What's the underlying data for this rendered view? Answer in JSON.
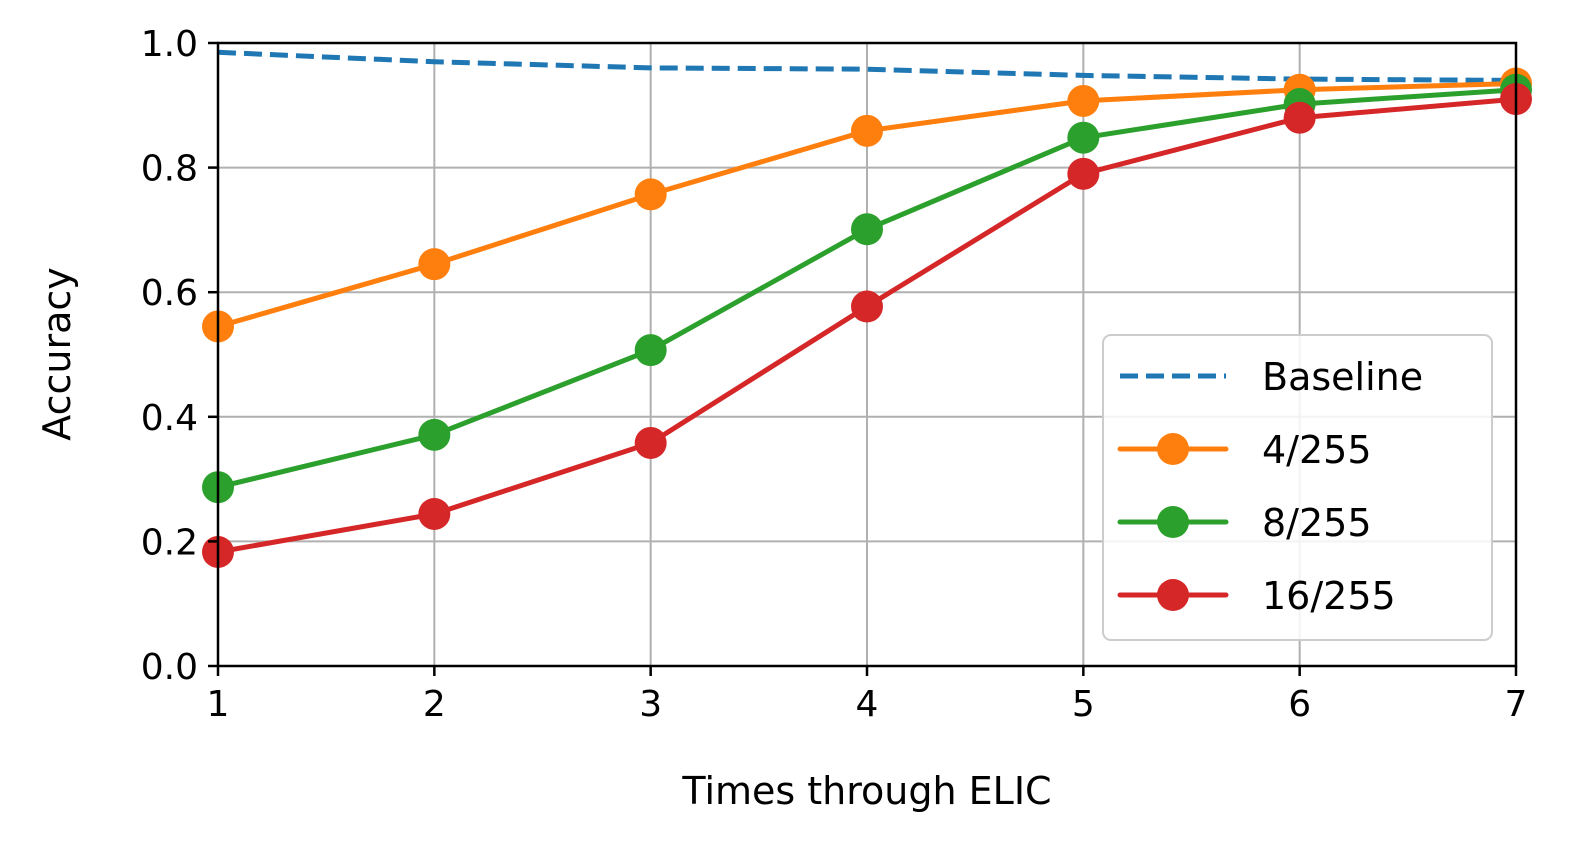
{
  "chart_data": {
    "type": "line",
    "title": "",
    "xlabel": "Times through ELIC",
    "ylabel": "Accuracy",
    "x": [
      1,
      2,
      3,
      4,
      5,
      6,
      7
    ],
    "xlim": [
      1,
      7
    ],
    "ylim": [
      0.0,
      1.0
    ],
    "xticks": [
      "1",
      "2",
      "3",
      "4",
      "5",
      "6",
      "7"
    ],
    "yticks": [
      "0.0",
      "0.2",
      "0.4",
      "0.6",
      "0.8",
      "1.0"
    ],
    "grid": true,
    "legend_position": "lower-right",
    "series": [
      {
        "name": "Baseline",
        "color": "#1f77b4",
        "style": "dashed",
        "marker": "none",
        "values": [
          0.985,
          0.97,
          0.96,
          0.958,
          0.948,
          0.942,
          0.94
        ]
      },
      {
        "name": "4/255",
        "color": "#ff7f0e",
        "style": "solid",
        "marker": "circle",
        "values": [
          0.545,
          0.645,
          0.757,
          0.859,
          0.907,
          0.925,
          0.935
        ]
      },
      {
        "name": "8/255",
        "color": "#2ca02c",
        "style": "solid",
        "marker": "circle",
        "values": [
          0.287,
          0.371,
          0.507,
          0.701,
          0.848,
          0.902,
          0.925
        ]
      },
      {
        "name": "16/255",
        "color": "#d62728",
        "style": "solid",
        "marker": "circle",
        "values": [
          0.183,
          0.244,
          0.358,
          0.577,
          0.79,
          0.88,
          0.91
        ]
      }
    ]
  }
}
